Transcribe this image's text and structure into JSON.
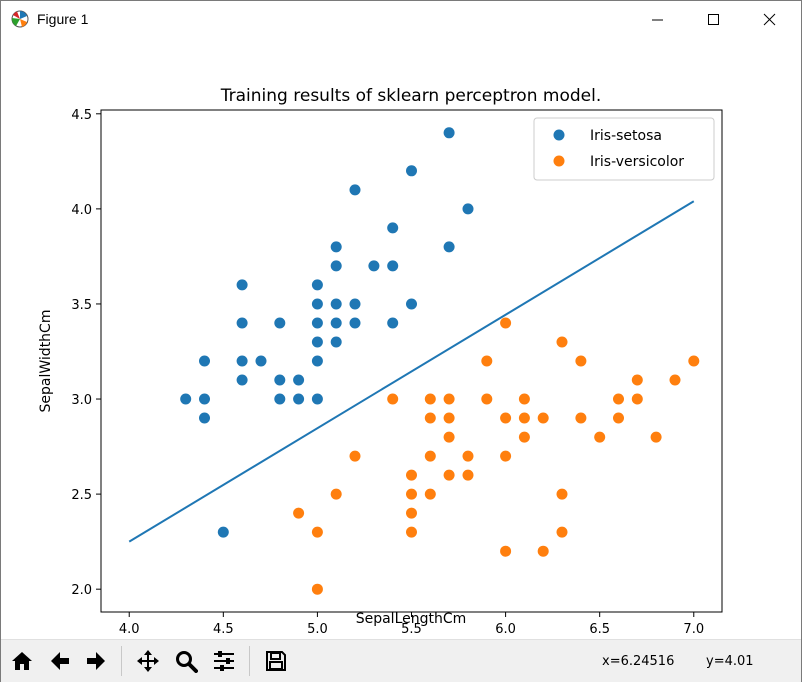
{
  "window": {
    "title": "Figure 1",
    "app_icon": "matplotlib-icon"
  },
  "toolbar": {
    "buttons": [
      "home-icon",
      "back-icon",
      "forward-icon",
      "pan-icon",
      "zoom-icon",
      "configure-icon",
      "save-icon"
    ],
    "coord_x": "x=6.24516",
    "coord_y": "y=4.01"
  },
  "chart_data": {
    "type": "scatter",
    "title": "Training results of sklearn perceptron model.",
    "xlabel": "SepalLengthCm",
    "ylabel": "SepalWidthCm",
    "xlim": [
      3.85,
      7.15
    ],
    "ylim": [
      1.88,
      4.52
    ],
    "xticks": [
      4.0,
      4.5,
      5.0,
      5.5,
      6.0,
      6.5,
      7.0
    ],
    "xtick_labels": [
      "4.0",
      "4.5",
      "5.0",
      "5.5",
      "6.0",
      "6.5",
      "7.0"
    ],
    "yticks": [
      2.0,
      2.5,
      3.0,
      3.5,
      4.0,
      4.5
    ],
    "ytick_labels": [
      "2.0",
      "2.5",
      "3.0",
      "3.5",
      "4.0",
      "4.5"
    ],
    "legend": "top-right",
    "series": [
      {
        "name": "Iris-setosa",
        "color": "#1f77b4",
        "points": [
          [
            4.3,
            3.0
          ],
          [
            4.4,
            3.2
          ],
          [
            4.4,
            3.0
          ],
          [
            4.4,
            2.9
          ],
          [
            4.5,
            2.3
          ],
          [
            4.6,
            3.6
          ],
          [
            4.6,
            3.4
          ],
          [
            4.6,
            3.2
          ],
          [
            4.6,
            3.1
          ],
          [
            4.7,
            3.2
          ],
          [
            4.8,
            3.4
          ],
          [
            4.8,
            3.1
          ],
          [
            4.8,
            3.0
          ],
          [
            4.9,
            3.1
          ],
          [
            4.9,
            3.0
          ],
          [
            5.0,
            3.6
          ],
          [
            5.0,
            3.5
          ],
          [
            5.0,
            3.4
          ],
          [
            5.0,
            3.3
          ],
          [
            5.0,
            3.2
          ],
          [
            5.0,
            3.0
          ],
          [
            5.1,
            3.8
          ],
          [
            5.1,
            3.7
          ],
          [
            5.1,
            3.5
          ],
          [
            5.1,
            3.4
          ],
          [
            5.1,
            3.3
          ],
          [
            5.2,
            4.1
          ],
          [
            5.2,
            3.5
          ],
          [
            5.2,
            3.4
          ],
          [
            5.3,
            3.7
          ],
          [
            5.4,
            3.9
          ],
          [
            5.4,
            3.7
          ],
          [
            5.4,
            3.4
          ],
          [
            5.5,
            4.2
          ],
          [
            5.5,
            3.5
          ],
          [
            5.7,
            4.4
          ],
          [
            5.7,
            3.8
          ],
          [
            5.8,
            4.0
          ]
        ]
      },
      {
        "name": "Iris-versicolor",
        "color": "#ff7f0e",
        "points": [
          [
            4.9,
            2.4
          ],
          [
            5.0,
            2.3
          ],
          [
            5.0,
            2.0
          ],
          [
            5.1,
            2.5
          ],
          [
            5.2,
            2.7
          ],
          [
            5.4,
            3.0
          ],
          [
            5.5,
            2.6
          ],
          [
            5.5,
            2.5
          ],
          [
            5.5,
            2.4
          ],
          [
            5.5,
            2.3
          ],
          [
            5.6,
            3.0
          ],
          [
            5.6,
            2.9
          ],
          [
            5.6,
            2.7
          ],
          [
            5.6,
            2.5
          ],
          [
            5.7,
            3.0
          ],
          [
            5.7,
            2.9
          ],
          [
            5.7,
            2.8
          ],
          [
            5.7,
            2.6
          ],
          [
            5.8,
            2.7
          ],
          [
            5.8,
            2.6
          ],
          [
            5.9,
            3.2
          ],
          [
            5.9,
            3.0
          ],
          [
            6.0,
            3.4
          ],
          [
            6.0,
            2.9
          ],
          [
            6.0,
            2.7
          ],
          [
            6.0,
            2.2
          ],
          [
            6.1,
            3.0
          ],
          [
            6.1,
            2.9
          ],
          [
            6.1,
            2.8
          ],
          [
            6.2,
            2.9
          ],
          [
            6.2,
            2.2
          ],
          [
            6.3,
            3.3
          ],
          [
            6.3,
            2.5
          ],
          [
            6.3,
            2.3
          ],
          [
            6.4,
            3.2
          ],
          [
            6.4,
            2.9
          ],
          [
            6.5,
            2.8
          ],
          [
            6.6,
            3.0
          ],
          [
            6.6,
            2.9
          ],
          [
            6.7,
            3.1
          ],
          [
            6.7,
            3.0
          ],
          [
            6.8,
            2.8
          ],
          [
            6.9,
            3.1
          ],
          [
            7.0,
            3.2
          ]
        ]
      }
    ],
    "line": {
      "name": "decision-boundary",
      "color": "#1f77b4",
      "x": [
        4.0,
        7.0
      ],
      "y": [
        2.25,
        4.04
      ]
    }
  }
}
